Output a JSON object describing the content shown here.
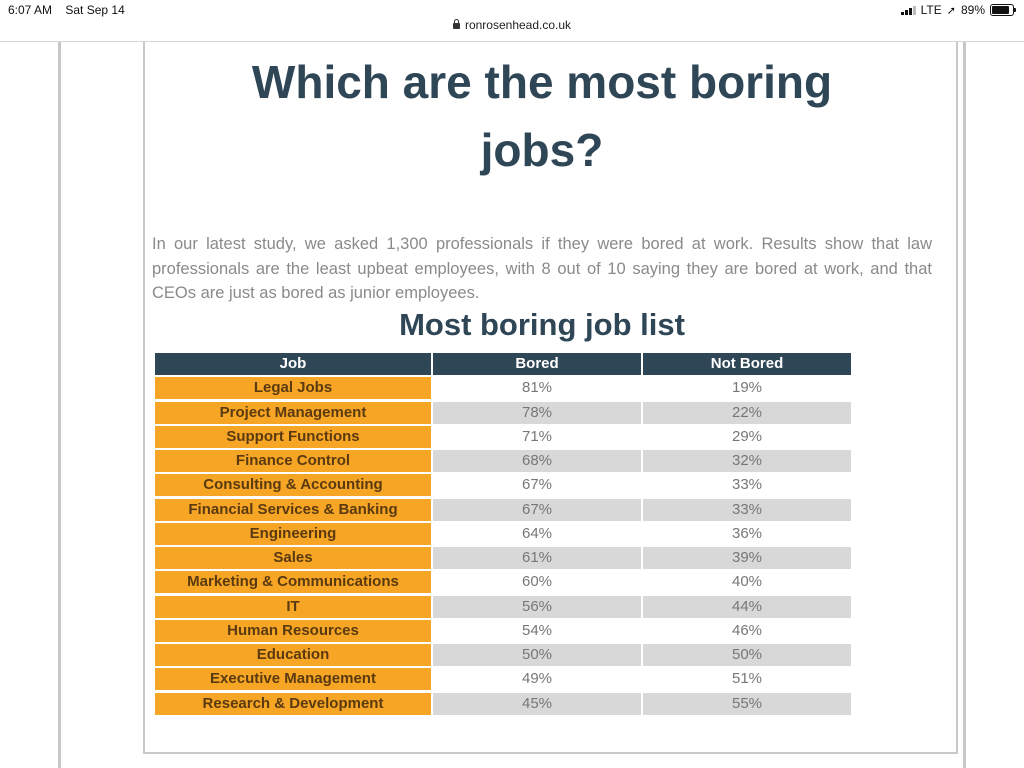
{
  "status_bar": {
    "time": "6:07 AM",
    "date": "Sat Sep 14",
    "network": "LTE",
    "battery": "89%"
  },
  "browser": {
    "url": "ronrosenhead.co.uk"
  },
  "article": {
    "title_line1": "Which are the most boring",
    "title_line2": "jobs?",
    "intro": "In our latest study, we asked 1,300 professionals if they were bored at work. Results show that law professionals are the least upbeat employees, with 8 out of 10 saying they are bored at work, and that CEOs are just as bored as junior employees.",
    "subtitle": "Most boring job list"
  },
  "table": {
    "headers": [
      "Job",
      "Bored",
      "Not Bored"
    ],
    "rows": [
      [
        "Legal Jobs",
        "81%",
        "19%"
      ],
      [
        "Project Management",
        "78%",
        "22%"
      ],
      [
        "Support Functions",
        "71%",
        "29%"
      ],
      [
        "Finance Control",
        "68%",
        "32%"
      ],
      [
        "Consulting & Accounting",
        "67%",
        "33%"
      ],
      [
        "Financial Services & Banking",
        "67%",
        "33%"
      ],
      [
        "Engineering",
        "64%",
        "36%"
      ],
      [
        "Sales",
        "61%",
        "39%"
      ],
      [
        "Marketing & Communications",
        "60%",
        "40%"
      ],
      [
        "IT",
        "56%",
        "44%"
      ],
      [
        "Human Resources",
        "54%",
        "46%"
      ],
      [
        "Education",
        "50%",
        "50%"
      ],
      [
        "Executive Management",
        "49%",
        "51%"
      ],
      [
        "Research & Development",
        "45%",
        "55%"
      ]
    ]
  },
  "colors": {
    "header_bg": "#2f4656",
    "job_cell_bg": "#f6a524",
    "title_color": "#2f4656"
  }
}
